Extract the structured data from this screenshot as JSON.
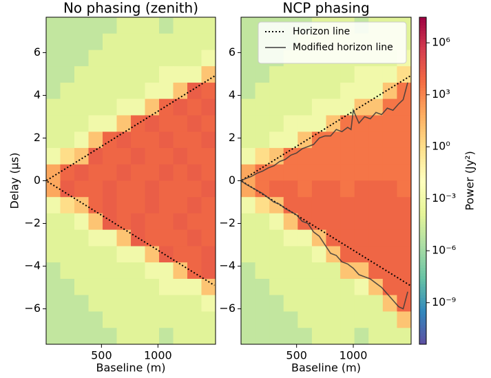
{
  "chart_data": [
    {
      "type": "heatmap",
      "title": "No phasing (zenith)",
      "xlabel": "Baseline (m)",
      "ylabel": "Delay (μs)",
      "xlim": [
        10,
        1510
      ],
      "ylim": [
        -7.66,
        7.66
      ],
      "xticks": [
        500,
        1000
      ],
      "yticks": [
        6,
        4,
        2,
        0,
        {
          "value": -2,
          "label": "−2"
        },
        {
          "value": -4,
          "label": "−4"
        },
        {
          "value": -6,
          "label": "−6"
        }
      ],
      "x": [
        72.5,
        197.5,
        322.5,
        447.5,
        572.5,
        697.5,
        822.5,
        947.5,
        1072.5,
        1197.5,
        1322.5,
        1447.5
      ],
      "y": [
        7.28,
        6.51,
        5.74,
        4.98,
        4.21,
        3.45,
        2.68,
        1.91,
        1.15,
        0.38,
        -0.38,
        -1.15,
        -1.91,
        -2.68,
        -3.45,
        -4.21,
        -4.98,
        -5.74,
        -6.51,
        -7.28
      ],
      "z": [
        [
          1e-05,
          1e-05,
          1e-05,
          1e-05,
          1e-05,
          0.0001,
          0.0001,
          0.0001,
          1e-05,
          0.0001,
          0.0001,
          0.0001
        ],
        [
          1e-05,
          1e-05,
          1e-05,
          1e-05,
          0.0001,
          0.0001,
          0.0001,
          0.0001,
          0.0001,
          0.0001,
          0.0001,
          0.0001
        ],
        [
          1e-05,
          1e-05,
          1e-05,
          0.0001,
          0.0001,
          0.0001,
          0.0001,
          0.0001,
          0.0001,
          0.0001,
          0.0001,
          0.001
        ],
        [
          1e-05,
          1e-05,
          0.0001,
          0.0001,
          0.0001,
          0.0001,
          0.0001,
          0.0001,
          0.001,
          0.001,
          0.001,
          10.0
        ],
        [
          1e-05,
          0.0001,
          0.0001,
          0.0001,
          0.0001,
          0.0001,
          0.0001,
          0.001,
          0.001,
          10.0,
          20000.0,
          10000.0
        ],
        [
          0.0001,
          0.0001,
          0.0001,
          0.0001,
          0.0001,
          0.001,
          0.001,
          10.0,
          10000.0,
          20000.0,
          10000.0,
          20000.0
        ],
        [
          0.0001,
          0.0001,
          0.0001,
          0.001,
          0.001,
          10.0,
          10000.0,
          20000.0,
          10000.0,
          10000.0,
          20000.0,
          10000.0
        ],
        [
          0.0001,
          0.0001,
          0.001,
          10.0,
          10000.0,
          20000.0,
          10000.0,
          10000.0,
          20000.0,
          10000.0,
          10000.0,
          20000.0
        ],
        [
          0.001,
          1.0,
          10.0,
          20000.0,
          10000.0,
          10000.0,
          20000.0,
          10000.0,
          10000.0,
          20000.0,
          10000.0,
          10000.0
        ],
        [
          100.0,
          10000.0,
          20000.0,
          10000.0,
          10000.0,
          20000.0,
          10000.0,
          10000.0,
          20000.0,
          10000.0,
          20000.0,
          10000.0
        ],
        [
          100.0,
          20000.0,
          10000.0,
          10000.0,
          20000.0,
          10000.0,
          10000.0,
          20000.0,
          10000.0,
          10000.0,
          10000.0,
          20000.0
        ],
        [
          0.001,
          1.0,
          10.0,
          10000.0,
          20000.0,
          10000.0,
          10000.0,
          20000.0,
          10000.0,
          10000.0,
          20000.0,
          10000.0
        ],
        [
          0.0001,
          0.0001,
          0.001,
          10.0,
          20000.0,
          10000.0,
          20000.0,
          10000.0,
          10000.0,
          20000.0,
          10000.0,
          10000.0
        ],
        [
          0.0001,
          0.0001,
          0.0001,
          0.001,
          0.001,
          10.0,
          20000.0,
          10000.0,
          10000.0,
          10000.0,
          20000.0,
          10000.0
        ],
        [
          0.0001,
          0.0001,
          0.0001,
          0.0001,
          0.0001,
          0.001,
          0.001,
          10.0,
          20000.0,
          10000.0,
          10000.0,
          20000.0
        ],
        [
          1e-05,
          0.0001,
          0.0001,
          0.0001,
          0.0001,
          0.0001,
          0.0001,
          0.001,
          0.001,
          10.0,
          10000.0,
          20000.0
        ],
        [
          1e-05,
          1e-05,
          0.0001,
          0.0001,
          0.0001,
          0.0001,
          0.0001,
          0.0001,
          0.001,
          0.001,
          0.001,
          10.0
        ],
        [
          1e-05,
          1e-05,
          1e-05,
          0.0001,
          0.0001,
          0.0001,
          0.0001,
          0.0001,
          0.0001,
          0.0001,
          0.0001,
          0.001
        ],
        [
          1e-05,
          1e-05,
          1e-05,
          1e-05,
          0.0001,
          0.0001,
          0.0001,
          0.0001,
          0.0001,
          0.0001,
          0.0001,
          0.0001
        ],
        [
          1e-05,
          1e-05,
          1e-05,
          1e-05,
          1e-05,
          0.0001,
          0.0001,
          0.0001,
          1e-05,
          0.0001,
          0.0001,
          0.0001
        ]
      ],
      "series": [
        {
          "color": "#000000",
          "style": "dotted",
          "x": [
            1500,
            10,
            1500
          ],
          "values": [
            4.9,
            0,
            -4.9
          ]
        }
      ]
    },
    {
      "type": "heatmap",
      "title": "NCP phasing",
      "xlabel": "Baseline (m)",
      "xlim": [
        10,
        1510
      ],
      "ylim": [
        -7.66,
        7.66
      ],
      "xticks": [
        500,
        1000
      ],
      "yticks": [
        6,
        4,
        2,
        0,
        {
          "value": -2,
          "label": "−2"
        },
        {
          "value": -4,
          "label": "−4"
        },
        {
          "value": -6,
          "label": "−6"
        }
      ],
      "x": [
        72.5,
        197.5,
        322.5,
        447.5,
        572.5,
        697.5,
        822.5,
        947.5,
        1072.5,
        1197.5,
        1322.5,
        1447.5
      ],
      "y": [
        7.28,
        6.51,
        5.74,
        4.98,
        4.21,
        3.45,
        2.68,
        1.91,
        1.15,
        0.38,
        -0.38,
        -1.15,
        -1.91,
        -2.68,
        -3.45,
        -4.21,
        -4.98,
        -5.74,
        -6.51,
        -7.28
      ],
      "z": [
        [
          1e-05,
          1e-05,
          1e-05,
          1e-05,
          1e-05,
          0.0001,
          0.0001,
          0.0001,
          1e-05,
          0.0001,
          0.0001,
          0.0001
        ],
        [
          1e-05,
          1e-05,
          1e-05,
          1e-05,
          0.0001,
          0.0001,
          0.0001,
          0.0001,
          0.0001,
          0.0001,
          0.0001,
          0.0001
        ],
        [
          1e-05,
          1e-05,
          1e-05,
          0.0001,
          0.0001,
          0.0001,
          0.0001,
          0.0001,
          0.0001,
          0.0001,
          0.0001,
          0.001
        ],
        [
          1e-05,
          1e-05,
          0.0001,
          0.0001,
          0.0001,
          0.0001,
          0.0001,
          0.0001,
          0.001,
          0.001,
          0.001,
          1.0
        ],
        [
          1e-05,
          0.0001,
          0.0001,
          0.0001,
          0.0001,
          0.0001,
          0.0001,
          0.001,
          0.001,
          0.001,
          10.0,
          3000.0
        ],
        [
          0.0001,
          0.0001,
          0.0001,
          0.0001,
          0.0001,
          0.001,
          0.001,
          0.001,
          10.0,
          10.0,
          3000.0,
          3000.0
        ],
        [
          0.0001,
          0.0001,
          0.0001,
          0.001,
          0.001,
          0.001,
          10.0,
          3000.0,
          3000.0,
          3000.0,
          3000.0,
          3000.0
        ],
        [
          0.0001,
          0.0001,
          0.001,
          0.001,
          10.0,
          3000.0,
          3000.0,
          3000.0,
          3000.0,
          3000.0,
          3000.0,
          3000.0
        ],
        [
          0.001,
          1.0,
          10.0,
          3000.0,
          3000.0,
          3000.0,
          3000.0,
          3000.0,
          3000.0,
          3000.0,
          3000.0,
          3000.0
        ],
        [
          100.0,
          3000.0,
          3000.0,
          3000.0,
          3000.0,
          3000.0,
          3000.0,
          3000.0,
          3000.0,
          3000.0,
          3000.0,
          3000.0
        ],
        [
          100.0,
          3000.0,
          10000.0,
          10000.0,
          3000.0,
          10000.0,
          10000.0,
          3000.0,
          10000.0,
          10000.0,
          10000.0,
          3000.0
        ],
        [
          0.001,
          1.0,
          10.0,
          10000.0,
          10000.0,
          10000.0,
          10000.0,
          10000.0,
          10000.0,
          10000.0,
          10000.0,
          10000.0
        ],
        [
          0.0001,
          0.0001,
          0.001,
          10.0,
          10000.0,
          10000.0,
          10000.0,
          10000.0,
          10000.0,
          10000.0,
          10000.0,
          10000.0
        ],
        [
          0.0001,
          0.0001,
          0.0001,
          0.001,
          0.001,
          10.0,
          10000.0,
          10000.0,
          10000.0,
          10000.0,
          10000.0,
          10000.0
        ],
        [
          0.0001,
          0.0001,
          0.0001,
          0.0001,
          0.0001,
          0.001,
          10.0,
          10000.0,
          10000.0,
          10000.0,
          10000.0,
          10000.0
        ],
        [
          1e-05,
          0.0001,
          0.0001,
          0.0001,
          0.0001,
          0.0001,
          0.0001,
          10.0,
          10.0,
          10000.0,
          10000.0,
          10000.0
        ],
        [
          1e-05,
          1e-05,
          0.0001,
          0.0001,
          0.0001,
          0.0001,
          0.0001,
          0.0001,
          0.001,
          10.0,
          10000.0,
          10000.0
        ],
        [
          1e-05,
          1e-05,
          1e-05,
          0.0001,
          0.0001,
          0.0001,
          0.0001,
          0.0001,
          0.0001,
          0.0001,
          10.0,
          10000.0
        ],
        [
          1e-05,
          1e-05,
          1e-05,
          1e-05,
          0.0001,
          0.0001,
          0.0001,
          0.0001,
          0.0001,
          0.0001,
          0.0001,
          10.0
        ],
        [
          1e-05,
          1e-05,
          1e-05,
          1e-05,
          1e-05,
          0.0001,
          0.0001,
          0.0001,
          1e-05,
          0.0001,
          0.0001,
          0.0001
        ]
      ],
      "legend": "upper right",
      "series": [
        {
          "name": "Horizon line",
          "color": "#000000",
          "style": "dotted",
          "x": [
            1500,
            10,
            1500
          ],
          "values": [
            4.9,
            0,
            -4.9
          ]
        },
        {
          "name": "Modified horizon line",
          "color": "#3a3a3a",
          "style": "solid",
          "x": [
            1480,
            1440,
            1400,
            1350,
            1300,
            1250,
            1200,
            1150,
            1100,
            1050,
            1000,
            980,
            950,
            900,
            850,
            800,
            750,
            700,
            650,
            600,
            550,
            500,
            450,
            400,
            350,
            300,
            250,
            200,
            150,
            100,
            50,
            10,
            50,
            100,
            150,
            200,
            250,
            300,
            350,
            400,
            450,
            500,
            550,
            600,
            650,
            700,
            750,
            800,
            850,
            900,
            950,
            1000,
            1050,
            1100,
            1150,
            1200,
            1250,
            1300,
            1350,
            1400,
            1440,
            1480
          ],
          "values": [
            4.6,
            3.8,
            3.6,
            3.3,
            3.4,
            3.1,
            3.2,
            2.9,
            3.0,
            2.7,
            3.3,
            2.4,
            2.5,
            2.3,
            2.4,
            2.1,
            2.1,
            2.0,
            1.7,
            1.6,
            1.5,
            1.3,
            1.2,
            1.0,
            0.9,
            0.7,
            0.6,
            0.45,
            0.35,
            0.2,
            0.1,
            0,
            -0.15,
            -0.3,
            -0.45,
            -0.6,
            -0.8,
            -1.0,
            -1.1,
            -1.3,
            -1.45,
            -1.6,
            -1.9,
            -2.0,
            -2.4,
            -2.6,
            -3.0,
            -3.4,
            -3.5,
            -3.8,
            -3.9,
            -4.1,
            -4.4,
            -4.5,
            -4.6,
            -4.8,
            -5.0,
            -5.3,
            -5.6,
            -5.9,
            -6.0,
            -5.2
          ]
        }
      ]
    }
  ],
  "colorbar": {
    "label": "Power (Jy²)",
    "log": true,
    "clim": [
      4e-12,
      30000000.0
    ],
    "colormap": [
      "#5e4fa2",
      "#3288bd",
      "#66c2a5",
      "#abdda4",
      "#e6f598",
      "#ffffbf",
      "#fee08b",
      "#fdae61",
      "#f46d43",
      "#d53e4f",
      "#9e0142"
    ],
    "ticks": [
      {
        "value": 1000000.0,
        "label": "10⁶"
      },
      {
        "value": 1000.0,
        "label": "10³"
      },
      {
        "value": 1,
        "label": "10⁰"
      },
      {
        "value": 0.001,
        "label": "10⁻³"
      },
      {
        "value": 1e-06,
        "label": "10⁻⁶"
      },
      {
        "value": 1e-09,
        "label": "10⁻⁹"
      }
    ]
  }
}
